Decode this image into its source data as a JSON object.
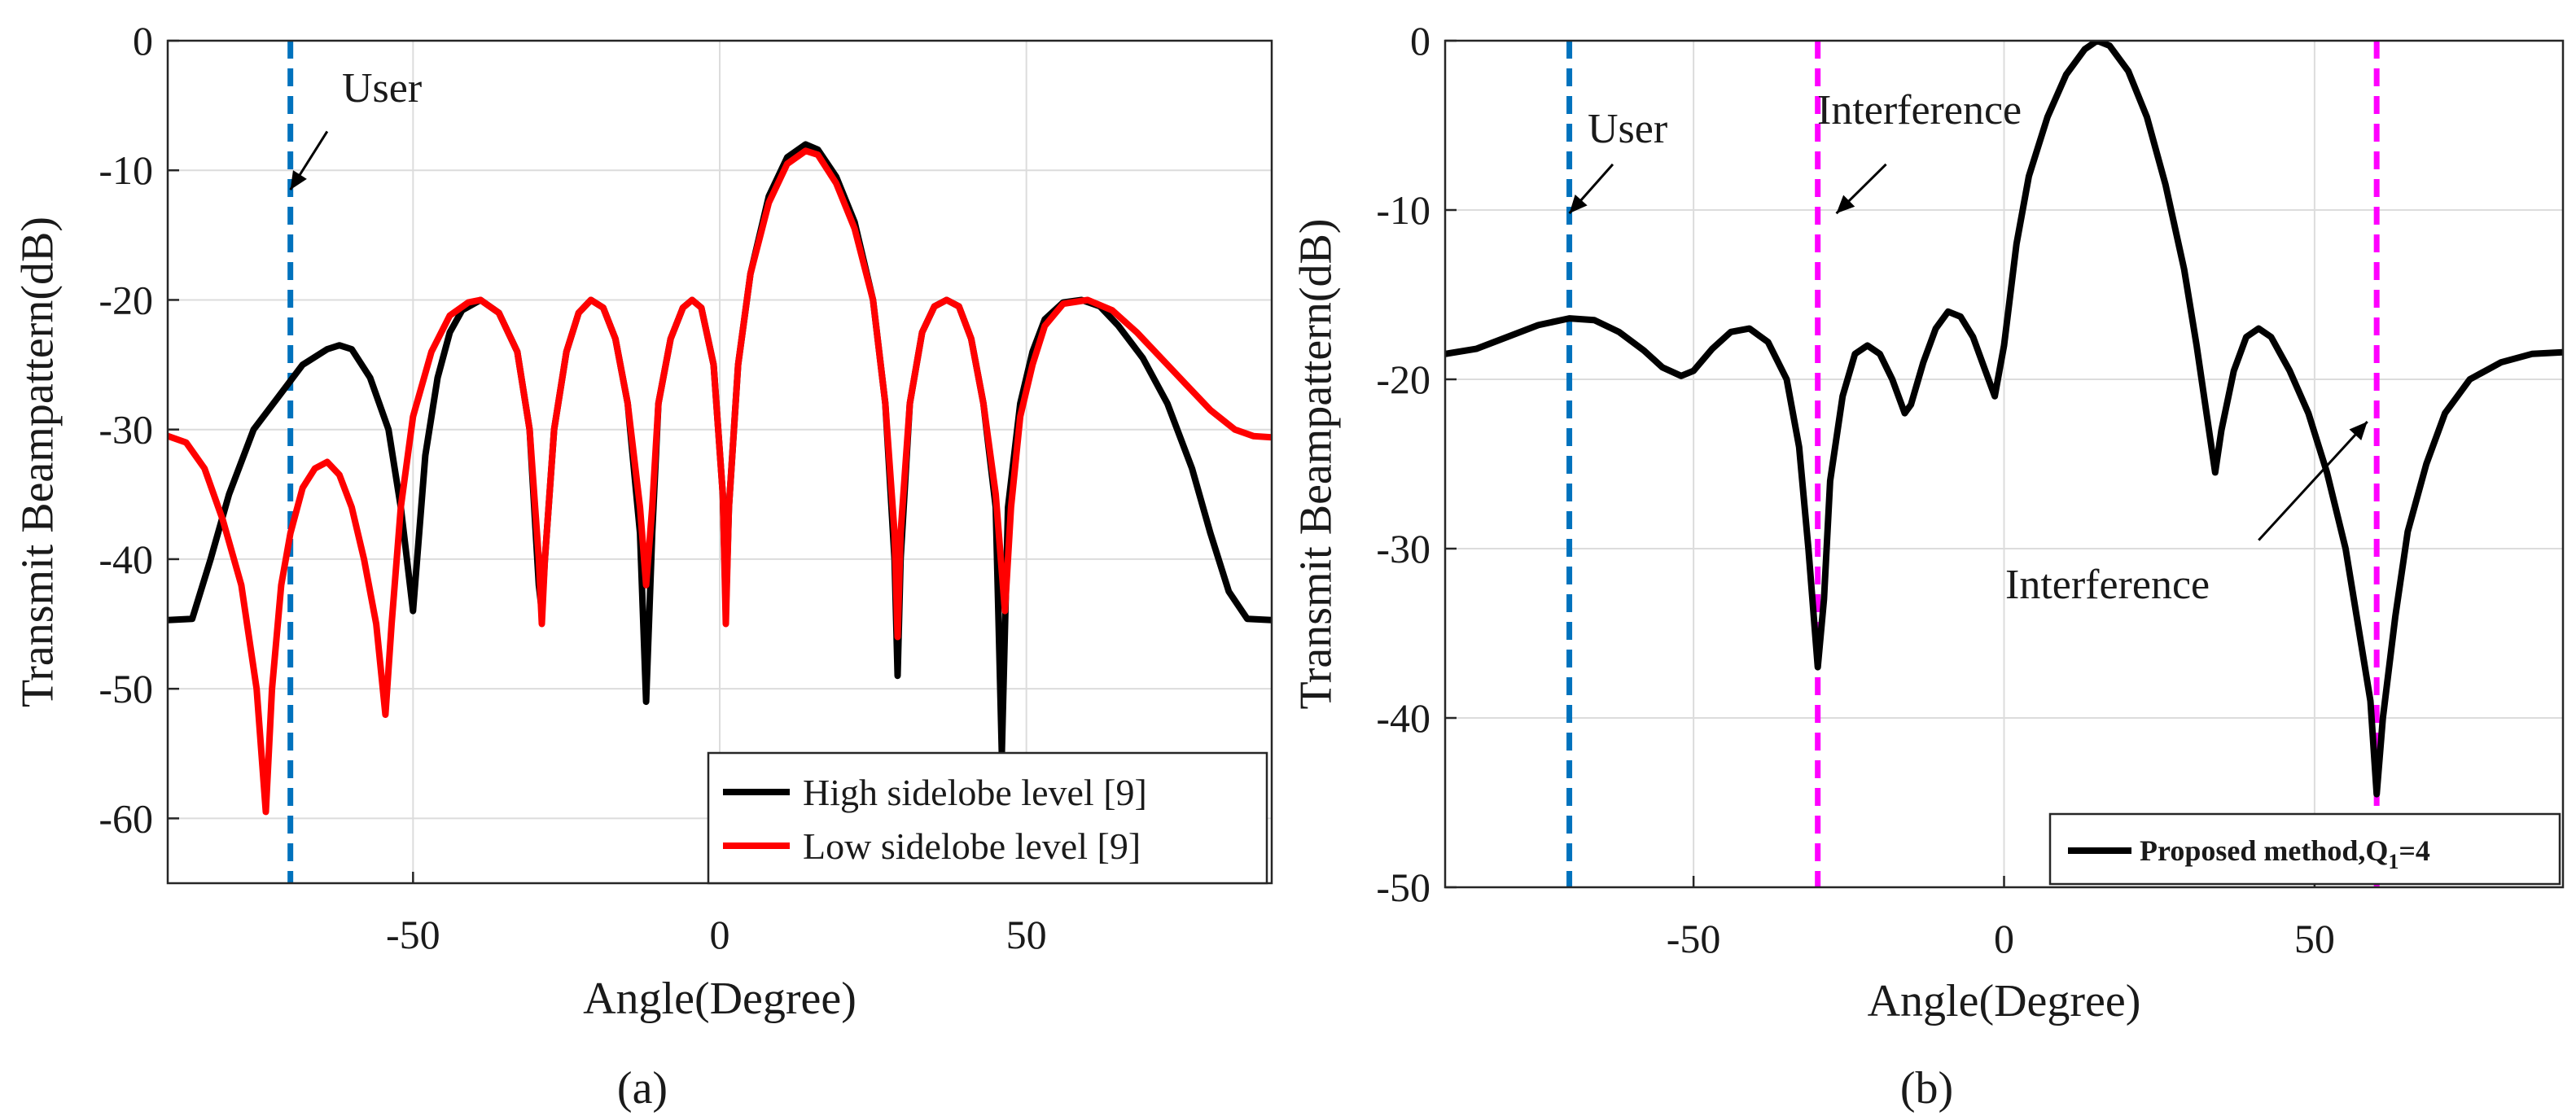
{
  "chart_data": [
    {
      "id": "a",
      "type": "line",
      "caption": "(a)",
      "xlabel": "Angle(Degree)",
      "ylabel": "Transmit Beampattern(dB)",
      "xlim": [
        -90,
        90
      ],
      "ylim": [
        -65,
        0
      ],
      "xticks": [
        -50,
        0,
        50
      ],
      "yticks": [
        0,
        -10,
        -20,
        -30,
        -40,
        -50,
        -60
      ],
      "grid": true,
      "legend_position": "bottom-right",
      "series": [
        {
          "name": "High sidelobe level [9]",
          "color": "#000000",
          "points": [
            [
              -90,
              -44.7
            ],
            [
              -86,
              -44.6
            ],
            [
              -83,
              -40
            ],
            [
              -80,
              -35
            ],
            [
              -76,
              -30
            ],
            [
              -72,
              -27.5
            ],
            [
              -68,
              -25
            ],
            [
              -64,
              -23.8
            ],
            [
              -62,
              -23.5
            ],
            [
              -60,
              -23.8
            ],
            [
              -57,
              -26
            ],
            [
              -54,
              -30
            ],
            [
              -52,
              -36
            ],
            [
              -50,
              -44
            ],
            [
              -48,
              -32
            ],
            [
              -46,
              -26
            ],
            [
              -44,
              -22.5
            ],
            [
              -42,
              -20.8
            ],
            [
              -39,
              -20
            ],
            [
              -36,
              -21
            ],
            [
              -33,
              -24
            ],
            [
              -31,
              -30
            ],
            [
              -29.5,
              -42
            ],
            [
              -29,
              -44
            ],
            [
              -28.5,
              -40
            ],
            [
              -27,
              -30
            ],
            [
              -25,
              -24
            ],
            [
              -23,
              -21
            ],
            [
              -21,
              -20
            ],
            [
              -19,
              -20.6
            ],
            [
              -17,
              -23
            ],
            [
              -15,
              -28
            ],
            [
              -13,
              -38
            ],
            [
              -12,
              -51
            ],
            [
              -11,
              -38
            ],
            [
              -10,
              -28
            ],
            [
              -8,
              -23
            ],
            [
              -6,
              -20.6
            ],
            [
              -4.5,
              -20
            ],
            [
              -3,
              -20.6
            ],
            [
              -1,
              -25
            ],
            [
              0.5,
              -35
            ],
            [
              1,
              -44
            ],
            [
              1.5,
              -36
            ],
            [
              3,
              -25
            ],
            [
              5,
              -18
            ],
            [
              8,
              -12
            ],
            [
              11,
              -9
            ],
            [
              14,
              -8
            ],
            [
              16,
              -8.4
            ],
            [
              19,
              -10.5
            ],
            [
              22,
              -14
            ],
            [
              25,
              -20
            ],
            [
              27,
              -28
            ],
            [
              28.5,
              -40
            ],
            [
              29,
              -49
            ],
            [
              29.5,
              -40
            ],
            [
              31,
              -28
            ],
            [
              33,
              -22.5
            ],
            [
              35,
              -20.5
            ],
            [
              37,
              -20
            ],
            [
              39,
              -20.5
            ],
            [
              41,
              -23
            ],
            [
              43,
              -28
            ],
            [
              45,
              -36
            ],
            [
              46,
              -55
            ],
            [
              47,
              -36
            ],
            [
              49,
              -28
            ],
            [
              51,
              -24
            ],
            [
              53,
              -21.5
            ],
            [
              56,
              -20.2
            ],
            [
              59,
              -20
            ],
            [
              62,
              -20.5
            ],
            [
              65,
              -22
            ],
            [
              69,
              -24.5
            ],
            [
              73,
              -28
            ],
            [
              77,
              -33
            ],
            [
              80,
              -38
            ],
            [
              83,
              -42.5
            ],
            [
              86,
              -44.6
            ],
            [
              90,
              -44.7
            ]
          ]
        },
        {
          "name": "Low sidelobe level [9]",
          "color": "#ff0000",
          "points": [
            [
              -90,
              -30.5
            ],
            [
              -87,
              -31
            ],
            [
              -84,
              -33
            ],
            [
              -81,
              -37
            ],
            [
              -78,
              -42
            ],
            [
              -75.5,
              -50
            ],
            [
              -74,
              -59.5
            ],
            [
              -73,
              -50
            ],
            [
              -71.5,
              -42
            ],
            [
              -70,
              -38
            ],
            [
              -68,
              -34.5
            ],
            [
              -66,
              -33
            ],
            [
              -64,
              -32.5
            ],
            [
              -62,
              -33.5
            ],
            [
              -60,
              -36
            ],
            [
              -58,
              -40
            ],
            [
              -56,
              -45
            ],
            [
              -54.5,
              -52
            ],
            [
              -53.5,
              -45
            ],
            [
              -52,
              -36
            ],
            [
              -50,
              -29
            ],
            [
              -47,
              -24
            ],
            [
              -44,
              -21.2
            ],
            [
              -41,
              -20.2
            ],
            [
              -39,
              -20
            ],
            [
              -36,
              -21
            ],
            [
              -33,
              -24
            ],
            [
              -31,
              -30
            ],
            [
              -29.5,
              -40
            ],
            [
              -29,
              -45
            ],
            [
              -28.5,
              -40
            ],
            [
              -27,
              -30
            ],
            [
              -25,
              -24
            ],
            [
              -23,
              -21
            ],
            [
              -21,
              -20
            ],
            [
              -19,
              -20.6
            ],
            [
              -17,
              -23
            ],
            [
              -15,
              -28
            ],
            [
              -13,
              -36
            ],
            [
              -12,
              -42
            ],
            [
              -11,
              -36
            ],
            [
              -10,
              -28
            ],
            [
              -8,
              -23
            ],
            [
              -6,
              -20.6
            ],
            [
              -4.5,
              -20
            ],
            [
              -3,
              -20.6
            ],
            [
              -1,
              -25
            ],
            [
              0.5,
              -35
            ],
            [
              1,
              -45
            ],
            [
              1.5,
              -36
            ],
            [
              3,
              -25
            ],
            [
              5,
              -18
            ],
            [
              8,
              -12.5
            ],
            [
              11,
              -9.5
            ],
            [
              14,
              -8.5
            ],
            [
              16,
              -8.8
            ],
            [
              19,
              -11
            ],
            [
              22,
              -14.5
            ],
            [
              25,
              -20
            ],
            [
              27,
              -28
            ],
            [
              28.5,
              -38
            ],
            [
              29,
              -46
            ],
            [
              29.5,
              -38
            ],
            [
              31,
              -28
            ],
            [
              33,
              -22.5
            ],
            [
              35,
              -20.5
            ],
            [
              37,
              -20
            ],
            [
              39,
              -20.5
            ],
            [
              41,
              -23
            ],
            [
              43,
              -28
            ],
            [
              45,
              -35
            ],
            [
              46.5,
              -44
            ],
            [
              47.5,
              -36
            ],
            [
              49,
              -29
            ],
            [
              51,
              -25
            ],
            [
              53,
              -22
            ],
            [
              56,
              -20.3
            ],
            [
              60,
              -20
            ],
            [
              64,
              -20.8
            ],
            [
              68,
              -22.5
            ],
            [
              72,
              -24.5
            ],
            [
              76,
              -26.5
            ],
            [
              80,
              -28.5
            ],
            [
              84,
              -30
            ],
            [
              87,
              -30.5
            ],
            [
              90,
              -30.6
            ]
          ]
        }
      ],
      "vlines": [
        {
          "x": -70,
          "color": "#0072bd",
          "style": "dashed"
        }
      ],
      "annotations": [
        {
          "text": "User",
          "arrow_from": [
            -64,
            -7
          ],
          "arrow_to": [
            -70,
            -11.5
          ]
        }
      ]
    },
    {
      "id": "b",
      "type": "line",
      "caption": "(b)",
      "xlabel": "Angle(Degree)",
      "ylabel": "Transmit Beampattern(dB)",
      "xlim": [
        -90,
        90
      ],
      "ylim": [
        -50,
        0
      ],
      "xticks": [
        -50,
        0,
        50
      ],
      "yticks": [
        0,
        -10,
        -20,
        -30,
        -40,
        -50
      ],
      "grid": true,
      "legend_position": "bottom-right",
      "series": [
        {
          "name": "Proposed method,Q",
          "name_subscript": "1",
          "name_suffix": "=4",
          "color": "#000000",
          "points": [
            [
              -90,
              -18.5
            ],
            [
              -85,
              -18.2
            ],
            [
              -80,
              -17.5
            ],
            [
              -75,
              -16.8
            ],
            [
              -70,
              -16.4
            ],
            [
              -66,
              -16.5
            ],
            [
              -62,
              -17.2
            ],
            [
              -58,
              -18.3
            ],
            [
              -55,
              -19.3
            ],
            [
              -52,
              -19.8
            ],
            [
              -50,
              -19.5
            ],
            [
              -47,
              -18.2
            ],
            [
              -44,
              -17.2
            ],
            [
              -41,
              -17
            ],
            [
              -38,
              -17.8
            ],
            [
              -35,
              -20
            ],
            [
              -33,
              -24
            ],
            [
              -31.5,
              -30
            ],
            [
              -30,
              -37
            ],
            [
              -29,
              -33
            ],
            [
              -28,
              -26
            ],
            [
              -26,
              -21
            ],
            [
              -24,
              -18.5
            ],
            [
              -22,
              -18
            ],
            [
              -20,
              -18.5
            ],
            [
              -18,
              -20
            ],
            [
              -16,
              -22
            ],
            [
              -15,
              -21.5
            ],
            [
              -13,
              -19
            ],
            [
              -11,
              -17
            ],
            [
              -9,
              -16
            ],
            [
              -7,
              -16.3
            ],
            [
              -5,
              -17.5
            ],
            [
              -3,
              -19.5
            ],
            [
              -1.5,
              -21
            ],
            [
              0,
              -18
            ],
            [
              2,
              -12
            ],
            [
              4,
              -8
            ],
            [
              7,
              -4.5
            ],
            [
              10,
              -2
            ],
            [
              13,
              -0.5
            ],
            [
              15,
              0
            ],
            [
              17,
              -0.3
            ],
            [
              20,
              -1.8
            ],
            [
              23,
              -4.5
            ],
            [
              26,
              -8.5
            ],
            [
              29,
              -13.5
            ],
            [
              31,
              -18
            ],
            [
              33,
              -23
            ],
            [
              34,
              -25.5
            ],
            [
              35,
              -23
            ],
            [
              37,
              -19.5
            ],
            [
              39,
              -17.5
            ],
            [
              41,
              -17
            ],
            [
              43,
              -17.5
            ],
            [
              46,
              -19.5
            ],
            [
              49,
              -22
            ],
            [
              52,
              -25.5
            ],
            [
              55,
              -30
            ],
            [
              57,
              -34.5
            ],
            [
              59,
              -39
            ],
            [
              60,
              -44.5
            ],
            [
              61,
              -40
            ],
            [
              63,
              -34
            ],
            [
              65,
              -29
            ],
            [
              68,
              -25
            ],
            [
              71,
              -22
            ],
            [
              75,
              -20
            ],
            [
              80,
              -19
            ],
            [
              85,
              -18.5
            ],
            [
              90,
              -18.4
            ]
          ]
        }
      ],
      "vlines": [
        {
          "x": -70,
          "color": "#0072bd",
          "style": "dashed"
        },
        {
          "x": -30,
          "color": "#ff00ff",
          "style": "dashed"
        },
        {
          "x": 60,
          "color": "#ff00ff",
          "style": "dashed"
        }
      ],
      "annotations": [
        {
          "text": "User",
          "arrow_from": [
            -63,
            -7.3
          ],
          "arrow_to": [
            -70,
            -10.2
          ]
        },
        {
          "text": "Interference",
          "arrow_from": [
            -19,
            -7.3
          ],
          "arrow_to": [
            -27,
            -10.2
          ]
        },
        {
          "text": "Interference",
          "arrow_from": [
            41,
            -29.5
          ],
          "arrow_to": [
            58.5,
            -22.5
          ]
        }
      ]
    }
  ]
}
